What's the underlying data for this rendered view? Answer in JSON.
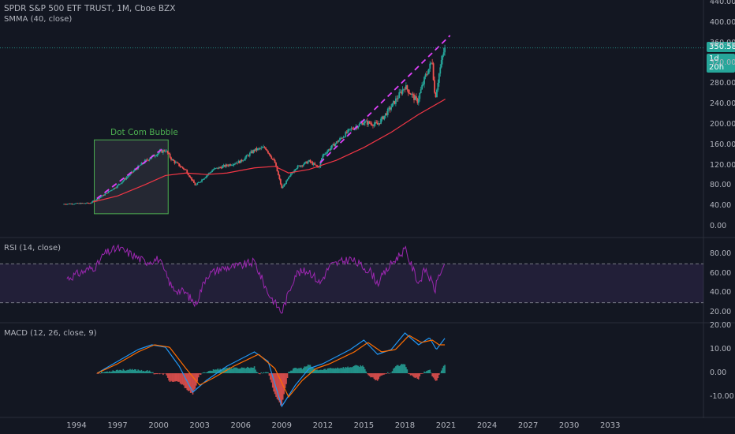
{
  "header": {
    "title": "SPDR S&P 500 ETF TRUST, 1M, Cboe BZX",
    "smma_label": "SMMA (40, close)"
  },
  "price_tags": {
    "last_price": "350.58",
    "countdown": "1d 20h"
  },
  "colors": {
    "background": "#131722",
    "up": "#26a69a",
    "down": "#ef5350",
    "smma": "#f23645",
    "trendline": "#e040fb",
    "rsi": "#9c27b0",
    "macd": "#2196f3",
    "signal": "#ff6d00",
    "box": "#4caf50"
  },
  "annotations": {
    "box_label": "Dot Com Bubble"
  },
  "panes": {
    "rsi_label": "RSI (14, close)",
    "macd_label": "MACD (12, 26, close, 9)"
  },
  "chart_data": [
    {
      "type": "candlestick",
      "title": "SPDR S&P 500 ETF TRUST, 1M, Cboe BZX",
      "x_ticks": [
        "1994",
        "1997",
        "2000",
        "2003",
        "2006",
        "2009",
        "2012",
        "2015",
        "2018",
        "2021",
        "2024",
        "2027",
        "2030",
        "2033"
      ],
      "y_ticks": [
        "0.00",
        "40.00",
        "80.00",
        "120.00",
        "160.00",
        "200.00",
        "240.00",
        "280.00",
        "320.00",
        "360.00",
        "400.00",
        "440.00"
      ],
      "y_range": [
        0,
        440
      ],
      "x_range": [
        1993.0,
        2034.0
      ],
      "last_price": 350.58,
      "price_path": [
        {
          "x": 1993.0,
          "y": 44
        },
        {
          "x": 1995.0,
          "y": 46
        },
        {
          "x": 1996.0,
          "y": 62
        },
        {
          "x": 1997.0,
          "y": 80
        },
        {
          "x": 1998.0,
          "y": 105
        },
        {
          "x": 1999.0,
          "y": 128
        },
        {
          "x": 2000.0,
          "y": 145
        },
        {
          "x": 2000.5,
          "y": 150
        },
        {
          "x": 2001.0,
          "y": 130
        },
        {
          "x": 2002.0,
          "y": 110
        },
        {
          "x": 2002.7,
          "y": 80
        },
        {
          "x": 2003.0,
          "y": 88
        },
        {
          "x": 2004.0,
          "y": 112
        },
        {
          "x": 2005.0,
          "y": 120
        },
        {
          "x": 2006.0,
          "y": 128
        },
        {
          "x": 2007.0,
          "y": 150
        },
        {
          "x": 2007.8,
          "y": 155
        },
        {
          "x": 2008.5,
          "y": 125
        },
        {
          "x": 2009.0,
          "y": 75
        },
        {
          "x": 2009.5,
          "y": 95
        },
        {
          "x": 2010.0,
          "y": 115
        },
        {
          "x": 2011.0,
          "y": 128
        },
        {
          "x": 2011.7,
          "y": 115
        },
        {
          "x": 2012.0,
          "y": 140
        },
        {
          "x": 2013.0,
          "y": 165
        },
        {
          "x": 2014.0,
          "y": 190
        },
        {
          "x": 2015.0,
          "y": 205
        },
        {
          "x": 2016.0,
          "y": 200
        },
        {
          "x": 2017.0,
          "y": 235
        },
        {
          "x": 2018.0,
          "y": 275
        },
        {
          "x": 2018.9,
          "y": 245
        },
        {
          "x": 2019.5,
          "y": 295
        },
        {
          "x": 2020.0,
          "y": 325
        },
        {
          "x": 2020.2,
          "y": 250
        },
        {
          "x": 2020.5,
          "y": 300
        },
        {
          "x": 2020.8,
          "y": 340
        },
        {
          "x": 2020.95,
          "y": 350.58
        }
      ],
      "smma_path": [
        {
          "x": 1995.2,
          "y": 48
        },
        {
          "x": 1997.0,
          "y": 60
        },
        {
          "x": 1999.0,
          "y": 82
        },
        {
          "x": 2000.5,
          "y": 100
        },
        {
          "x": 2002.0,
          "y": 105
        },
        {
          "x": 2003.5,
          "y": 102
        },
        {
          "x": 2005.0,
          "y": 105
        },
        {
          "x": 2007.0,
          "y": 115
        },
        {
          "x": 2008.5,
          "y": 118
        },
        {
          "x": 2009.5,
          "y": 105
        },
        {
          "x": 2011.0,
          "y": 112
        },
        {
          "x": 2013.0,
          "y": 130
        },
        {
          "x": 2015.0,
          "y": 155
        },
        {
          "x": 2017.0,
          "y": 185
        },
        {
          "x": 2019.0,
          "y": 220
        },
        {
          "x": 2020.95,
          "y": 250
        }
      ],
      "trendlines": [
        {
          "from": {
            "x": 1995.5,
            "y": 55
          },
          "to": {
            "x": 2000.3,
            "y": 153
          }
        },
        {
          "from": {
            "x": 2011.8,
            "y": 125
          },
          "to": {
            "x": 2021.3,
            "y": 375
          }
        }
      ],
      "box": {
        "x0": 1995.3,
        "x1": 2000.7,
        "y0": 25,
        "y1": 170
      }
    },
    {
      "type": "line",
      "title": "RSI (14, close)",
      "y_ticks": [
        "20.00",
        "40.00",
        "60.00",
        "80.00"
      ],
      "y_range": [
        15,
        92
      ],
      "band": [
        30,
        70
      ],
      "path": [
        {
          "x": 1993.3,
          "y": 55
        },
        {
          "x": 1994.5,
          "y": 62
        },
        {
          "x": 1995.5,
          "y": 68
        },
        {
          "x": 1996.0,
          "y": 80
        },
        {
          "x": 1997.0,
          "y": 86
        },
        {
          "x": 1998.0,
          "y": 80
        },
        {
          "x": 1999.0,
          "y": 72
        },
        {
          "x": 2000.0,
          "y": 75
        },
        {
          "x": 2001.0,
          "y": 45
        },
        {
          "x": 2002.0,
          "y": 40
        },
        {
          "x": 2002.7,
          "y": 28
        },
        {
          "x": 2003.5,
          "y": 58
        },
        {
          "x": 2004.5,
          "y": 65
        },
        {
          "x": 2006.0,
          "y": 68
        },
        {
          "x": 2007.0,
          "y": 72
        },
        {
          "x": 2008.0,
          "y": 40
        },
        {
          "x": 2009.0,
          "y": 20
        },
        {
          "x": 2010.0,
          "y": 60
        },
        {
          "x": 2011.0,
          "y": 63
        },
        {
          "x": 2011.8,
          "y": 50
        },
        {
          "x": 2012.5,
          "y": 68
        },
        {
          "x": 2014.0,
          "y": 75
        },
        {
          "x": 2015.5,
          "y": 62
        },
        {
          "x": 2016.0,
          "y": 50
        },
        {
          "x": 2017.0,
          "y": 70
        },
        {
          "x": 2018.0,
          "y": 85
        },
        {
          "x": 2019.0,
          "y": 50
        },
        {
          "x": 2019.5,
          "y": 65
        },
        {
          "x": 2020.2,
          "y": 43
        },
        {
          "x": 2020.5,
          "y": 60
        },
        {
          "x": 2020.95,
          "y": 66
        }
      ]
    },
    {
      "type": "line",
      "title": "MACD (12, 26, close, 9)",
      "y_ticks": [
        "-10.00",
        "0.00",
        "10.00",
        "20.00"
      ],
      "y_range": [
        -17,
        22
      ],
      "macd_path": [
        {
          "x": 1995.5,
          "y": 0
        },
        {
          "x": 1997.0,
          "y": 5
        },
        {
          "x": 1998.5,
          "y": 10
        },
        {
          "x": 1999.5,
          "y": 12
        },
        {
          "x": 2000.5,
          "y": 11
        },
        {
          "x": 2001.5,
          "y": 3
        },
        {
          "x": 2002.5,
          "y": -8
        },
        {
          "x": 2003.5,
          "y": -3
        },
        {
          "x": 2005.0,
          "y": 3
        },
        {
          "x": 2007.0,
          "y": 9
        },
        {
          "x": 2008.0,
          "y": 5
        },
        {
          "x": 2009.0,
          "y": -14
        },
        {
          "x": 2010.0,
          "y": -5
        },
        {
          "x": 2011.0,
          "y": 2
        },
        {
          "x": 2012.0,
          "y": 4
        },
        {
          "x": 2014.0,
          "y": 10
        },
        {
          "x": 2015.0,
          "y": 14
        },
        {
          "x": 2016.0,
          "y": 8
        },
        {
          "x": 2017.0,
          "y": 10
        },
        {
          "x": 2018.0,
          "y": 17
        },
        {
          "x": 2019.0,
          "y": 12
        },
        {
          "x": 2019.8,
          "y": 15
        },
        {
          "x": 2020.3,
          "y": 10
        },
        {
          "x": 2020.95,
          "y": 15
        }
      ],
      "signal_path": [
        {
          "x": 1995.5,
          "y": 0
        },
        {
          "x": 1997.0,
          "y": 4
        },
        {
          "x": 1998.5,
          "y": 9
        },
        {
          "x": 1999.7,
          "y": 12
        },
        {
          "x": 2000.8,
          "y": 11
        },
        {
          "x": 2002.0,
          "y": 2
        },
        {
          "x": 2003.0,
          "y": -5
        },
        {
          "x": 2004.0,
          "y": -2
        },
        {
          "x": 2005.5,
          "y": 3
        },
        {
          "x": 2007.3,
          "y": 8
        },
        {
          "x": 2008.5,
          "y": 2
        },
        {
          "x": 2009.5,
          "y": -10
        },
        {
          "x": 2010.5,
          "y": -3
        },
        {
          "x": 2011.5,
          "y": 2
        },
        {
          "x": 2012.5,
          "y": 4
        },
        {
          "x": 2014.3,
          "y": 9
        },
        {
          "x": 2015.3,
          "y": 13
        },
        {
          "x": 2016.3,
          "y": 9
        },
        {
          "x": 2017.3,
          "y": 10
        },
        {
          "x": 2018.3,
          "y": 16
        },
        {
          "x": 2019.2,
          "y": 13
        },
        {
          "x": 2020.0,
          "y": 14
        },
        {
          "x": 2020.5,
          "y": 12
        },
        {
          "x": 2020.95,
          "y": 12
        }
      ]
    }
  ]
}
